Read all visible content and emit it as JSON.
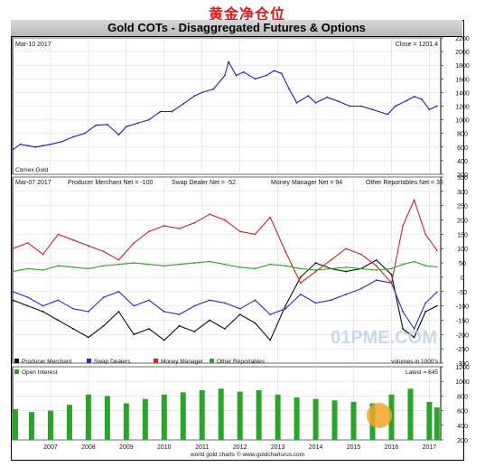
{
  "page_title": "黄金净仓位",
  "chart_title": "Gold COTs - Disaggregated Futures & Options",
  "watermark": "01PME.COM",
  "chart_data": [
    {
      "type": "line",
      "panel": "price",
      "date_label": "Mar-10 2017",
      "readout": "Close = 1201.4",
      "note": "Comex Gold",
      "ylim": [
        200,
        2200
      ],
      "y_ticks": [
        200,
        400,
        600,
        800,
        1000,
        1200,
        1400,
        1600,
        1800,
        2000,
        2200
      ],
      "color": "#1d1dc8",
      "series": [
        {
          "x": [
            2006.0,
            2006.2,
            2006.4,
            2006.6,
            2006.8,
            2007.0,
            2007.3,
            2007.6,
            2007.9,
            2008.2,
            2008.5,
            2008.8,
            2009.0,
            2009.3,
            2009.6,
            2009.9,
            2010.2,
            2010.5,
            2010.8,
            2011.0,
            2011.3,
            2011.6,
            2011.7,
            2011.9,
            2012.1,
            2012.4,
            2012.7,
            2012.9,
            2013.1,
            2013.3,
            2013.5,
            2013.8,
            2014.0,
            2014.3,
            2014.6,
            2014.9,
            2015.2,
            2015.5,
            2015.9,
            2016.1,
            2016.4,
            2016.6,
            2016.8,
            2017.0,
            2017.2
          ],
          "values": [
            560,
            640,
            620,
            600,
            620,
            640,
            680,
            750,
            800,
            920,
            930,
            780,
            900,
            950,
            1000,
            1120,
            1120,
            1230,
            1350,
            1400,
            1450,
            1650,
            1850,
            1650,
            1700,
            1600,
            1650,
            1720,
            1680,
            1450,
            1250,
            1350,
            1250,
            1330,
            1270,
            1200,
            1200,
            1150,
            1080,
            1200,
            1280,
            1340,
            1300,
            1150,
            1201
          ]
        }
      ]
    },
    {
      "type": "line",
      "panel": "net-positions",
      "date_label": "Mar-07 2017",
      "ylabel": "volumes in 1000's",
      "ylim": [
        -300,
        350
      ],
      "y_ticks": [
        -300,
        -250,
        -200,
        -150,
        -100,
        -50,
        0,
        50,
        100,
        150,
        200,
        250,
        300,
        350
      ],
      "readouts": [
        "Producer Merchant Net = -100",
        "Swap Dealer Net = -52",
        "Money Manager Net = 94",
        "Other Reportables Net = 36"
      ],
      "series": [
        {
          "name": "Producer Merchant",
          "color": "#111111",
          "x": [
            2006.0,
            2006.4,
            2006.8,
            2007.2,
            2007.6,
            2008.0,
            2008.4,
            2008.8,
            2009.2,
            2009.6,
            2010.0,
            2010.4,
            2010.8,
            2011.2,
            2011.6,
            2012.0,
            2012.4,
            2012.8,
            2013.2,
            2013.6,
            2014.0,
            2014.4,
            2014.8,
            2015.2,
            2015.6,
            2016.0,
            2016.3,
            2016.6,
            2016.9,
            2017.2
          ],
          "values": [
            -80,
            -100,
            -120,
            -150,
            -180,
            -210,
            -170,
            -120,
            -200,
            -180,
            -220,
            -170,
            -190,
            -150,
            -180,
            -130,
            -160,
            -220,
            -100,
            0,
            50,
            30,
            20,
            30,
            60,
            10,
            -180,
            -210,
            -120,
            -100
          ]
        },
        {
          "name": "Swap Dealers",
          "color": "#2a2ad8",
          "x": [
            2006.0,
            2006.4,
            2006.8,
            2007.2,
            2007.6,
            2008.0,
            2008.4,
            2008.8,
            2009.2,
            2009.6,
            2010.0,
            2010.4,
            2010.8,
            2011.2,
            2011.6,
            2012.0,
            2012.4,
            2012.8,
            2013.2,
            2013.6,
            2014.0,
            2014.4,
            2014.8,
            2015.2,
            2015.6,
            2016.0,
            2016.3,
            2016.6,
            2016.9,
            2017.2
          ],
          "values": [
            -50,
            -70,
            -100,
            -80,
            -110,
            -120,
            -70,
            -50,
            -100,
            -80,
            -120,
            -130,
            -100,
            -80,
            -90,
            -110,
            -80,
            -130,
            -110,
            -60,
            -90,
            -80,
            -60,
            -40,
            -10,
            -20,
            -120,
            -180,
            -90,
            -52
          ]
        },
        {
          "name": "Money Manager",
          "color": "#d82020",
          "x": [
            2006.0,
            2006.4,
            2006.8,
            2007.2,
            2007.6,
            2008.0,
            2008.4,
            2008.8,
            2009.2,
            2009.6,
            2010.0,
            2010.4,
            2010.8,
            2011.2,
            2011.6,
            2012.0,
            2012.4,
            2012.8,
            2013.2,
            2013.6,
            2014.0,
            2014.4,
            2014.8,
            2015.2,
            2015.6,
            2016.0,
            2016.3,
            2016.6,
            2016.9,
            2017.2
          ],
          "values": [
            100,
            120,
            80,
            150,
            130,
            110,
            90,
            60,
            120,
            160,
            180,
            170,
            190,
            220,
            200,
            160,
            150,
            210,
            90,
            -20,
            20,
            60,
            100,
            80,
            40,
            -20,
            180,
            270,
            150,
            94
          ]
        },
        {
          "name": "Other Reportables",
          "color": "#2aa52a",
          "x": [
            2006.0,
            2006.4,
            2006.8,
            2007.2,
            2007.6,
            2008.0,
            2008.4,
            2008.8,
            2009.2,
            2009.6,
            2010.0,
            2010.4,
            2010.8,
            2011.2,
            2011.6,
            2012.0,
            2012.4,
            2012.8,
            2013.2,
            2013.6,
            2014.0,
            2014.4,
            2014.8,
            2015.2,
            2015.6,
            2016.0,
            2016.3,
            2016.6,
            2016.9,
            2017.2
          ],
          "values": [
            20,
            30,
            25,
            40,
            35,
            30,
            40,
            45,
            50,
            45,
            40,
            45,
            50,
            55,
            45,
            35,
            30,
            45,
            40,
            30,
            25,
            30,
            35,
            30,
            25,
            30,
            45,
            55,
            40,
            36
          ]
        }
      ]
    },
    {
      "type": "bar",
      "panel": "open-interest",
      "legend": "Open Interest",
      "readout": "Latest = 645",
      "color": "#2aa52a",
      "ylim": [
        200,
        1200
      ],
      "y_ticks": [
        200,
        400,
        600,
        800,
        1000,
        1200
      ],
      "x": [
        2006.0,
        2006.5,
        2007.0,
        2007.5,
        2008.0,
        2008.5,
        2009.0,
        2009.5,
        2010.0,
        2010.5,
        2011.0,
        2011.5,
        2012.0,
        2012.5,
        2013.0,
        2013.5,
        2014.0,
        2014.5,
        2015.0,
        2015.5,
        2016.0,
        2016.5,
        2017.0,
        2017.2
      ],
      "values": [
        620,
        580,
        600,
        680,
        820,
        800,
        700,
        760,
        820,
        850,
        880,
        900,
        860,
        880,
        820,
        780,
        760,
        740,
        720,
        700,
        820,
        900,
        720,
        645
      ]
    }
  ],
  "x_tick_labels": [
    "2007",
    "2008",
    "2009",
    "2010",
    "2011",
    "2012",
    "2013",
    "2014",
    "2015",
    "2016",
    "2017"
  ],
  "x_range": [
    2006.0,
    2017.3
  ],
  "footer": "world gold charts © www.goldchartsrus.com"
}
